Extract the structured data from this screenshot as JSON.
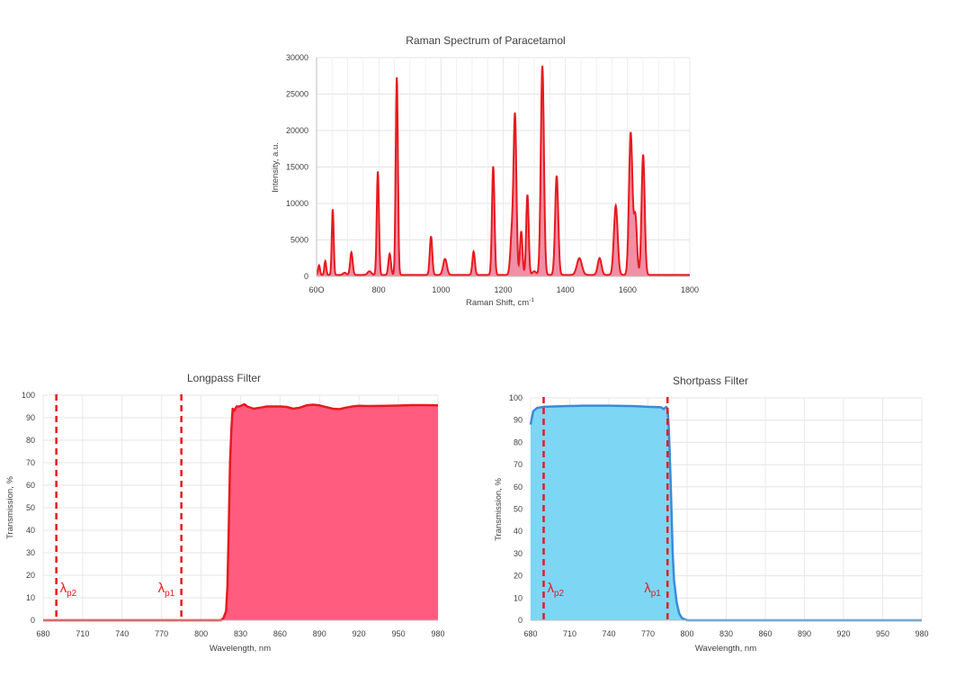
{
  "charts": {
    "raman": {
      "title": "Raman Spectrum of Paracetamol",
      "xlabel": "Raman Shift, cm",
      "xlabel_sup": "-1",
      "ylabel": "Intensity, a.u.",
      "xtick_labels": [
        "60O",
        "800",
        "1000",
        "1200",
        "1400",
        "1600",
        "1800"
      ],
      "ytick_labels": [
        "0",
        "5000",
        "10000",
        "15000",
        "20000",
        "25000",
        "30000"
      ]
    },
    "longpass": {
      "title": "Longpass Filter",
      "xlabel": "Wavelength, nm",
      "ylabel": "Transmission, %",
      "xtick_labels": [
        "680",
        "710",
        "740",
        "770",
        "800",
        "830",
        "860",
        "890",
        "920",
        "950",
        "980"
      ],
      "ytick_labels": [
        "0",
        "10",
        "20",
        "30",
        "40",
        "50",
        "60",
        "70",
        "80",
        "90",
        "100"
      ],
      "marker1_label": "λ",
      "marker1_sub": "p2",
      "marker2_label": "λ",
      "marker2_sub": "p1"
    },
    "shortpass": {
      "title": "Shortpass Filter",
      "xlabel": "Wavelength, nm",
      "ylabel": "Transmission, %",
      "xtick_labels": [
        "680",
        "710",
        "740",
        "770",
        "800",
        "830",
        "860",
        "890",
        "920",
        "950",
        "980"
      ],
      "ytick_labels": [
        "0",
        "10",
        "20",
        "30",
        "40",
        "50",
        "60",
        "70",
        "80",
        "90",
        "100"
      ],
      "marker1_label": "λ",
      "marker1_sub": "p2",
      "marker2_label": "λ",
      "marker2_sub": "p1"
    }
  },
  "chart_data": [
    {
      "type": "area",
      "title": "Raman Spectrum of Paracetamol",
      "xlabel": "Raman Shift, cm-1",
      "ylabel": "Intensity, a.u.",
      "xlim": [
        600,
        1800
      ],
      "ylim": [
        0,
        30000
      ],
      "grid": true,
      "color": "#e8191e",
      "fill_color": "#f08fa6",
      "peaks": [
        {
          "x": 608,
          "y": 1300,
          "w": 3
        },
        {
          "x": 628,
          "y": 1900,
          "w": 3
        },
        {
          "x": 652,
          "y": 9000,
          "w": 3
        },
        {
          "x": 690,
          "y": 300,
          "w": 5
        },
        {
          "x": 712,
          "y": 3100,
          "w": 4
        },
        {
          "x": 770,
          "y": 500,
          "w": 6
        },
        {
          "x": 797,
          "y": 14200,
          "w": 3.5
        },
        {
          "x": 835,
          "y": 2900,
          "w": 4
        },
        {
          "x": 858,
          "y": 27100,
          "w": 3.5
        },
        {
          "x": 968,
          "y": 5300,
          "w": 4
        },
        {
          "x": 1013,
          "y": 2200,
          "w": 6
        },
        {
          "x": 1105,
          "y": 3200,
          "w": 4
        },
        {
          "x": 1168,
          "y": 14900,
          "w": 4
        },
        {
          "x": 1228,
          "y": 5500,
          "w": 5
        },
        {
          "x": 1238,
          "y": 21500,
          "w": 4.5
        },
        {
          "x": 1258,
          "y": 6000,
          "w": 4
        },
        {
          "x": 1278,
          "y": 11000,
          "w": 4
        },
        {
          "x": 1300,
          "y": 500,
          "w": 6
        },
        {
          "x": 1326,
          "y": 28700,
          "w": 5
        },
        {
          "x": 1372,
          "y": 13600,
          "w": 5
        },
        {
          "x": 1445,
          "y": 2300,
          "w": 8
        },
        {
          "x": 1510,
          "y": 2300,
          "w": 6
        },
        {
          "x": 1562,
          "y": 9500,
          "w": 6
        },
        {
          "x": 1610,
          "y": 19500,
          "w": 5.5
        },
        {
          "x": 1625,
          "y": 8000,
          "w": 5
        },
        {
          "x": 1650,
          "y": 16500,
          "w": 5
        }
      ],
      "baseline": 200
    },
    {
      "type": "area",
      "title": "Longpass Filter",
      "xlabel": "Wavelength, nm",
      "ylabel": "Transmission, %",
      "xlim": [
        680,
        980
      ],
      "ylim": [
        0,
        100
      ],
      "grid": true,
      "color": "#e8191e",
      "fill_color": "#ff5c80",
      "x": [
        680,
        815,
        817,
        819,
        820,
        821,
        822,
        823,
        824,
        825,
        827,
        829,
        831,
        833,
        835,
        840,
        845,
        850,
        860,
        865,
        870,
        875,
        880,
        885,
        890,
        900,
        905,
        910,
        915,
        920,
        925,
        930,
        940,
        950,
        960,
        970,
        980
      ],
      "y": [
        0,
        0,
        1,
        4,
        15,
        40,
        70,
        85,
        94,
        93,
        95,
        95,
        95.5,
        96,
        95,
        94,
        94.5,
        95,
        95,
        94.8,
        94,
        94.5,
        95.5,
        95.8,
        95.5,
        94,
        93.8,
        94.5,
        95,
        95.3,
        95.2,
        95.2,
        95.3,
        95.4,
        95.6,
        95.6,
        95.5
      ],
      "markers": [
        {
          "x": 690,
          "label": "λp2"
        },
        {
          "x": 785,
          "label": "λp1"
        }
      ]
    },
    {
      "type": "area",
      "title": "Shortpass Filter",
      "xlabel": "Wavelength, nm",
      "ylabel": "Transmission, %",
      "xlim": [
        680,
        980
      ],
      "ylim": [
        0,
        100
      ],
      "grid": true,
      "color": "#3a8bd8",
      "fill_color": "#7dd6f4",
      "x": [
        680,
        682,
        685,
        690,
        700,
        720,
        740,
        760,
        770,
        780,
        782,
        784,
        785,
        786,
        787,
        788,
        789,
        790,
        792,
        794,
        796,
        800,
        980
      ],
      "y": [
        88,
        94,
        95.5,
        96,
        96.2,
        96.5,
        96.5,
        96.3,
        96,
        95.8,
        95,
        96,
        95,
        86,
        70,
        50,
        30,
        18,
        8,
        3,
        1,
        0,
        0
      ],
      "markers": [
        {
          "x": 690,
          "label": "λp2"
        },
        {
          "x": 785,
          "label": "λp1"
        }
      ]
    }
  ]
}
